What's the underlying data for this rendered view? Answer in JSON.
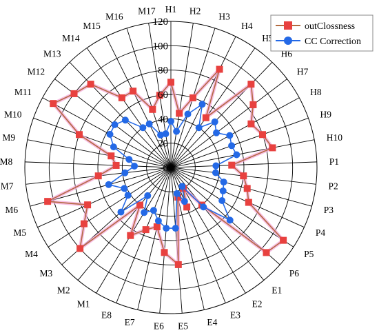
{
  "chart_data": {
    "type": "radar",
    "categories": [
      "H1",
      "H2",
      "H3",
      "H4",
      "H5",
      "H6",
      "H7",
      "H8",
      "H9",
      "H10",
      "P1",
      "P2",
      "P3",
      "P4",
      "P5",
      "P6",
      "E1",
      "E2",
      "E3",
      "E4",
      "E5",
      "E6",
      "E7",
      "E8",
      "M1",
      "M2",
      "M3",
      "M4",
      "M5",
      "M6",
      "M7",
      "M8",
      "M9",
      "M10",
      "M11",
      "M12",
      "M13",
      "M14",
      "M15",
      "M16",
      "M17"
    ],
    "rlim": [
      0,
      120
    ],
    "r_ticks": [
      0,
      20,
      40,
      60,
      80,
      100,
      120
    ],
    "grid": true,
    "legend_position": "top-right",
    "series": [
      {
        "name": "outClossness",
        "color": "#e8413f",
        "line_color": "#b36a40",
        "marker": "square",
        "values": [
          70,
          45,
          60,
          90,
          50,
          95,
          85,
          75,
          80,
          85,
          50,
          60,
          65,
          70,
          110,
          105,
          40,
          20,
          35,
          25,
          80,
          70,
          50,
          55,
          65,
          40,
          100,
          85,
          75,
          105,
          60,
          45,
          50,
          80,
          110,
          100,
          95,
          70,
          70,
          50,
          60
        ]
      },
      {
        "name": "CC Correction",
        "color": "#2469e6",
        "line_color": "#2469e6",
        "marker": "circle",
        "values": [
          38,
          30,
          46,
          58,
          40,
          52,
          47,
          55,
          53,
          55,
          37,
          37,
          45,
          47,
          50,
          65,
          42,
          18,
          30,
          22,
          50,
          50,
          45,
          38,
          43,
          30,
          55,
          42,
          42,
          53,
          38,
          30,
          35,
          50,
          57,
          58,
          54,
          40,
          40,
          28,
          28
        ]
      }
    ]
  }
}
